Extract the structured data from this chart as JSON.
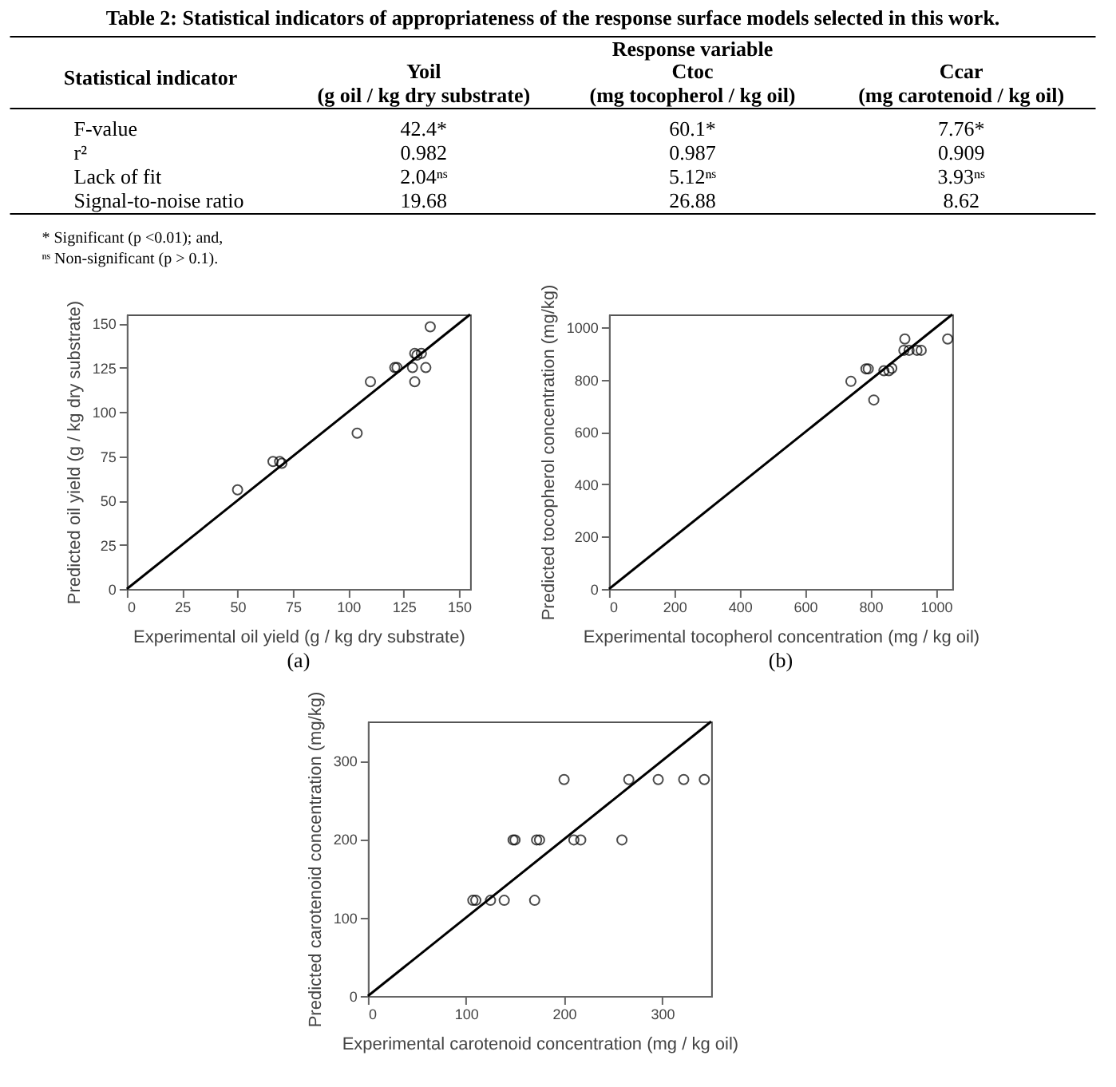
{
  "chart_data": [
    {
      "type": "other",
      "title": "Table 2: Statistical indicators of appropriateness of the response surface models selected in this work.",
      "ylabel": "Statistical indicator",
      "legend_title": "Response variable",
      "categories": [
        "F-value",
        "r²",
        "Lack of fit",
        "Signal-to-noise ratio"
      ],
      "series": [
        {
          "name": "Yoil\n(g oil / kg dry substrate)",
          "values": [
            42.4,
            0.982,
            2.04,
            19.68
          ],
          "value_labels": [
            "42.4*",
            "0.982",
            "2.04ⁿˢ",
            "19.68"
          ]
        },
        {
          "name": "Ctoc\n(mg tocopherol / kg oil)",
          "values": [
            60.1,
            0.987,
            5.12,
            26.88
          ],
          "value_labels": [
            "60.1*",
            "0.987",
            "5.12ⁿˢ",
            "26.88"
          ]
        },
        {
          "name": "Ccar\n(mg carotenoid / kg oil)",
          "values": [
            7.76,
            0.909,
            3.93,
            8.62
          ],
          "value_labels": [
            "7.76*",
            "0.909",
            "3.93ⁿˢ",
            "8.62"
          ]
        }
      ],
      "annotations": [
        "*    Significant (p <0.01); and,",
        "ⁿˢ  Non-significant (p > 0.1)."
      ]
    },
    {
      "type": "scatter",
      "xlabel": "Experimental oil yield (g / kg dry substrate)",
      "ylabel": "Predicted oil yield (g / kg dry substrate)",
      "xlim": [
        0,
        155
      ],
      "ylim": [
        0,
        155
      ],
      "xticks": [
        0,
        25,
        50,
        75,
        100,
        125,
        150
      ],
      "yticks": [
        0,
        25,
        50,
        75,
        100,
        125,
        150
      ],
      "annotations": [
        "(a)"
      ],
      "series": [
        {
          "marker": "circle",
          "color": "#000000",
          "x": [
            50,
            66,
            69,
            70,
            104,
            110,
            121,
            122,
            129,
            130,
            130,
            131,
            133,
            135,
            137
          ],
          "values": [
            56,
            72,
            72,
            71,
            88,
            117,
            125,
            125,
            125,
            117,
            133,
            132,
            133,
            125,
            148
          ]
        },
        {
          "type": "line",
          "color": "#000000",
          "x": [
            0,
            155
          ],
          "values": [
            0,
            155
          ]
        }
      ]
    },
    {
      "type": "scatter",
      "xlabel": "Experimental tocopherol concentration (mg / kg oil)",
      "ylabel": "Predicted tocopherol concentration (mg/kg)",
      "xlim": [
        0,
        1050
      ],
      "ylim": [
        0,
        1050
      ],
      "xticks": [
        0,
        200,
        400,
        600,
        800,
        1000
      ],
      "yticks": [
        0,
        200,
        400,
        600,
        800,
        1000
      ],
      "annotations": [
        "(b)"
      ],
      "series": [
        {
          "marker": "circle",
          "color": "#000000",
          "x": [
            740,
            786,
            793,
            810,
            841,
            856,
            865,
            905,
            902,
            918,
            942,
            955,
            1036
          ],
          "values": [
            794,
            842,
            842,
            723,
            835,
            835,
            844,
            956,
            913,
            913,
            913,
            913,
            956
          ]
        },
        {
          "type": "line",
          "color": "#000000",
          "x": [
            0,
            1050
          ],
          "values": [
            0,
            1050
          ]
        }
      ]
    },
    {
      "type": "scatter",
      "xlabel": "Experimental carotenoid concentration (mg / kg oil)",
      "ylabel": "Predicted carotenoid concentration (mg/kg)",
      "xlim": [
        0,
        350
      ],
      "ylim": [
        0,
        350
      ],
      "xticks": [
        0,
        100,
        200,
        300
      ],
      "yticks": [
        0,
        100,
        200,
        300
      ],
      "series": [
        {
          "marker": "circle",
          "color": "#000000",
          "x": [
            107,
            110,
            125,
            139,
            170,
            148,
            150,
            172,
            175,
            210,
            217,
            259,
            200,
            266,
            296,
            322,
            343
          ],
          "values": [
            122,
            122,
            122,
            122,
            122,
            199,
            199,
            199,
            199,
            199,
            199,
            199,
            276,
            276,
            276,
            276,
            276
          ]
        },
        {
          "type": "line",
          "color": "#000000",
          "x": [
            0,
            350
          ],
          "values": [
            0,
            350
          ]
        }
      ]
    }
  ]
}
